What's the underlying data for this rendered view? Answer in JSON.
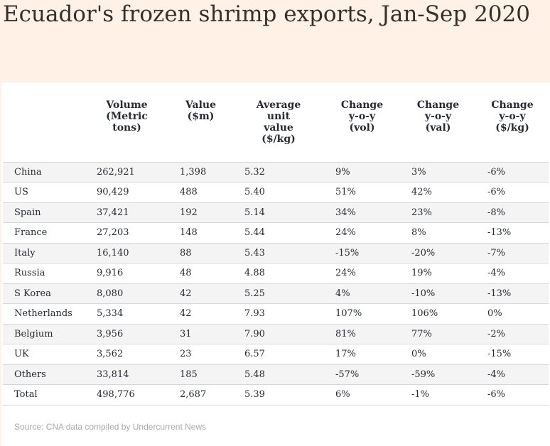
{
  "title": "Ecuador's frozen shrimp exports, Jan-Sep 2020",
  "source": "Source: CNA data compiled by Undercurrent News",
  "chart_data": {
    "type": "table",
    "title": "Ecuador's frozen shrimp exports, Jan-Sep 2020",
    "columns": [
      "",
      "Volume (Metric tons)",
      "Value ($m)",
      "Average unit value ($/kg)",
      "Change y-o-y (vol)",
      "Change y-o-y (val)",
      "Change y-o-y ($/kg)"
    ],
    "rows": [
      [
        "China",
        "262,921",
        "1,398",
        "5.32",
        "9%",
        "3%",
        "-6%"
      ],
      [
        "US",
        "90,429",
        "488",
        "5.40",
        "51%",
        "42%",
        "-6%"
      ],
      [
        "Spain",
        "37,421",
        "192",
        "5.14",
        "34%",
        "23%",
        "-8%"
      ],
      [
        "France",
        "27,203",
        "148",
        "5.44",
        "24%",
        "8%",
        "-13%"
      ],
      [
        "Italy",
        "16,140",
        "88",
        "5.43",
        "-15%",
        "-20%",
        "-7%"
      ],
      [
        "Russia",
        "9,916",
        "48",
        "4.88",
        "24%",
        "19%",
        "-4%"
      ],
      [
        "S Korea",
        "8,080",
        "42",
        "5.25",
        "4%",
        "-10%",
        "-13%"
      ],
      [
        "Netherlands",
        "5,334",
        "42",
        "7.93",
        "107%",
        "106%",
        "0%"
      ],
      [
        "Belgium",
        "3,956",
        "31",
        "7.90",
        "81%",
        "77%",
        "-2%"
      ],
      [
        "UK",
        "3,562",
        "23",
        "6.57",
        "17%",
        "0%",
        "-15%"
      ],
      [
        "Others",
        "33,814",
        "185",
        "5.48",
        "-57%",
        "-59%",
        "-4%"
      ],
      [
        "Total",
        "498,776",
        "2,687",
        "5.39",
        "6%",
        "-1%",
        "-6%"
      ]
    ]
  }
}
